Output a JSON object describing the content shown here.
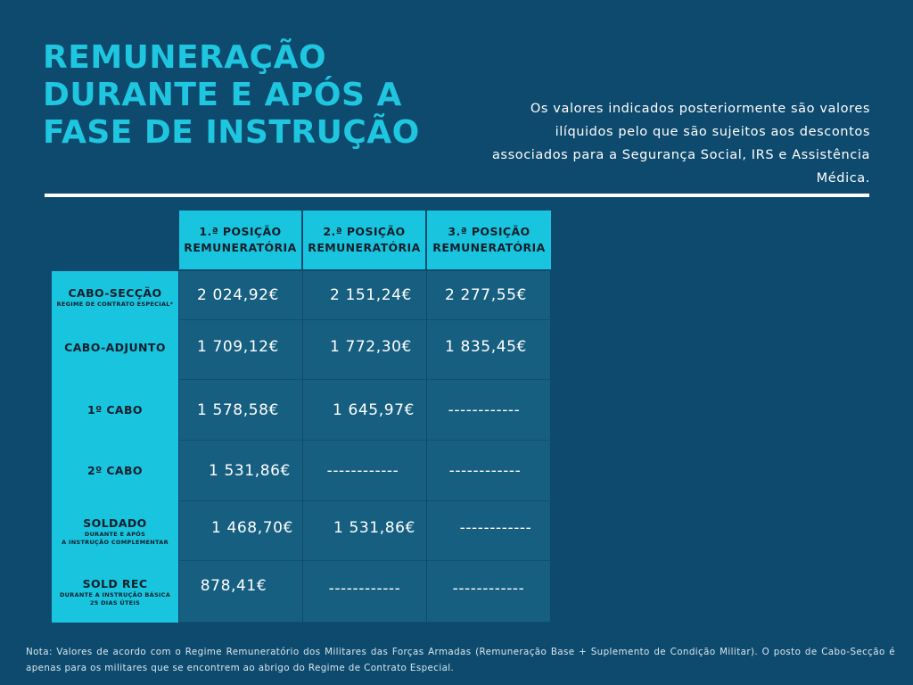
{
  "title": {
    "line1": "REMUNERAÇÃO",
    "line2": "DURANTE E APÓS A",
    "line3": "FASE DE INSTRUÇÃO"
  },
  "intro": "Os valores indicados posteriormente são valores ilíquidos pelo que são sujeitos aos descontos associados para a Segurança Social, IRS e Assistência Médica.",
  "table": {
    "columns": [
      {
        "line1": "1.ª POSIÇÃO",
        "line2": "REMUNERATÓRIA"
      },
      {
        "line1": "2.ª POSIÇÃO",
        "line2": "REMUNERATÓRIA"
      },
      {
        "line1": "3.ª POSIÇÃO",
        "line2": "REMUNERATÓRIA"
      }
    ],
    "rows": [
      {
        "label": "CABO-SECÇÃO",
        "sub1": "REGIME DE CONTRATO ESPECIAL*",
        "sub2": "",
        "values": [
          "2 024,92€",
          "2 151,24€",
          "2 277,55€"
        ]
      },
      {
        "label": "CABO-ADJUNTO",
        "sub1": "",
        "sub2": "",
        "values": [
          "1 709,12€",
          "1 772,30€",
          "1 835,45€"
        ]
      },
      {
        "label": "1º CABO",
        "sub1": "",
        "sub2": "",
        "values": [
          "1 578,58€",
          "1 645,97€",
          "------------"
        ]
      },
      {
        "label": "2º CABO",
        "sub1": "",
        "sub2": "",
        "values": [
          "1 531,86€",
          "------------",
          "------------"
        ]
      },
      {
        "label": "SOLDADO",
        "sub1": "DURANTE E APÓS",
        "sub2": "A INSTRUÇÃO COMPLEMENTAR",
        "values": [
          "1 468,70€",
          "1 531,86€",
          "------------"
        ]
      },
      {
        "label": "SOLD REC",
        "sub1": "DURANTE A INSTRUÇÃO BÁSICA",
        "sub2": "25 DIAS ÚTEIS",
        "values": [
          "878,41€",
          "------------",
          "------------"
        ]
      }
    ]
  },
  "note": "Nota: Valores de acordo com o Regime Remuneratório dos Militares das Forças Armadas (Remuneração Base + Suplemento de Condição Militar). O posto de Cabo-Secção é apenas para os militares que se encontrem ao abrigo do Regime de Contrato Especial."
}
